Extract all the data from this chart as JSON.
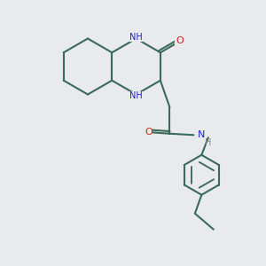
{
  "bg_color": "#e8eaeb",
  "bond_color": "#3a6b5a",
  "N_color": "#2020cc",
  "O_color": "#cc2020",
  "lw": 1.5,
  "fig_size": [
    3.0,
    3.0
  ],
  "dpi": 100,
  "xlim": [
    0,
    10
  ],
  "ylim": [
    0,
    10
  ],
  "bl": 1.05
}
